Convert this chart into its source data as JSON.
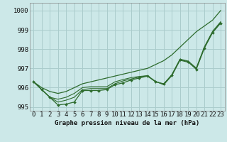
{
  "title": "Graphe pression niveau de la mer (hPa)",
  "bg_color": "#cce8e8",
  "grid_color": "#aacccc",
  "line_color": "#2d6b2d",
  "xlim": [
    -0.5,
    23.5
  ],
  "ylim": [
    994.8,
    1000.4
  ],
  "yticks": [
    995,
    996,
    997,
    998,
    999,
    1000
  ],
  "xticks": [
    0,
    1,
    2,
    3,
    4,
    5,
    6,
    7,
    8,
    9,
    10,
    11,
    12,
    13,
    14,
    15,
    16,
    17,
    18,
    19,
    20,
    21,
    22,
    23
  ],
  "series_with_markers": [
    996.3,
    995.9,
    995.5,
    995.1,
    995.15,
    995.25,
    995.85,
    995.85,
    995.85,
    995.9,
    996.15,
    996.25,
    996.4,
    996.5,
    996.6,
    996.3,
    996.2,
    996.65,
    997.45,
    997.35,
    996.95,
    998.05,
    998.85,
    999.35
  ],
  "series_smooth_top": [
    996.3,
    996.0,
    995.8,
    995.7,
    995.8,
    996.0,
    996.2,
    996.3,
    996.4,
    996.5,
    996.6,
    996.7,
    996.8,
    996.9,
    997.0,
    997.2,
    997.4,
    997.7,
    998.1,
    998.5,
    998.9,
    999.2,
    999.5,
    1000.0
  ],
  "series_mid1": [
    996.3,
    995.9,
    995.5,
    995.25,
    995.35,
    995.5,
    995.9,
    995.95,
    995.95,
    995.95,
    996.2,
    996.35,
    996.45,
    996.55,
    996.62,
    996.32,
    996.18,
    996.68,
    997.48,
    997.38,
    997.02,
    998.12,
    998.92,
    999.42
  ],
  "series_mid2": [
    996.3,
    995.9,
    995.5,
    995.4,
    995.5,
    995.7,
    996.0,
    996.05,
    996.05,
    996.05,
    996.3,
    996.42,
    996.52,
    996.58,
    996.62,
    996.32,
    996.15,
    996.62,
    997.42,
    997.32,
    996.98,
    998.08,
    998.88,
    999.38
  ],
  "xlabel_fontsize": 6.5,
  "ylabel_fontsize": 6.5,
  "title_fontsize": 6.5
}
